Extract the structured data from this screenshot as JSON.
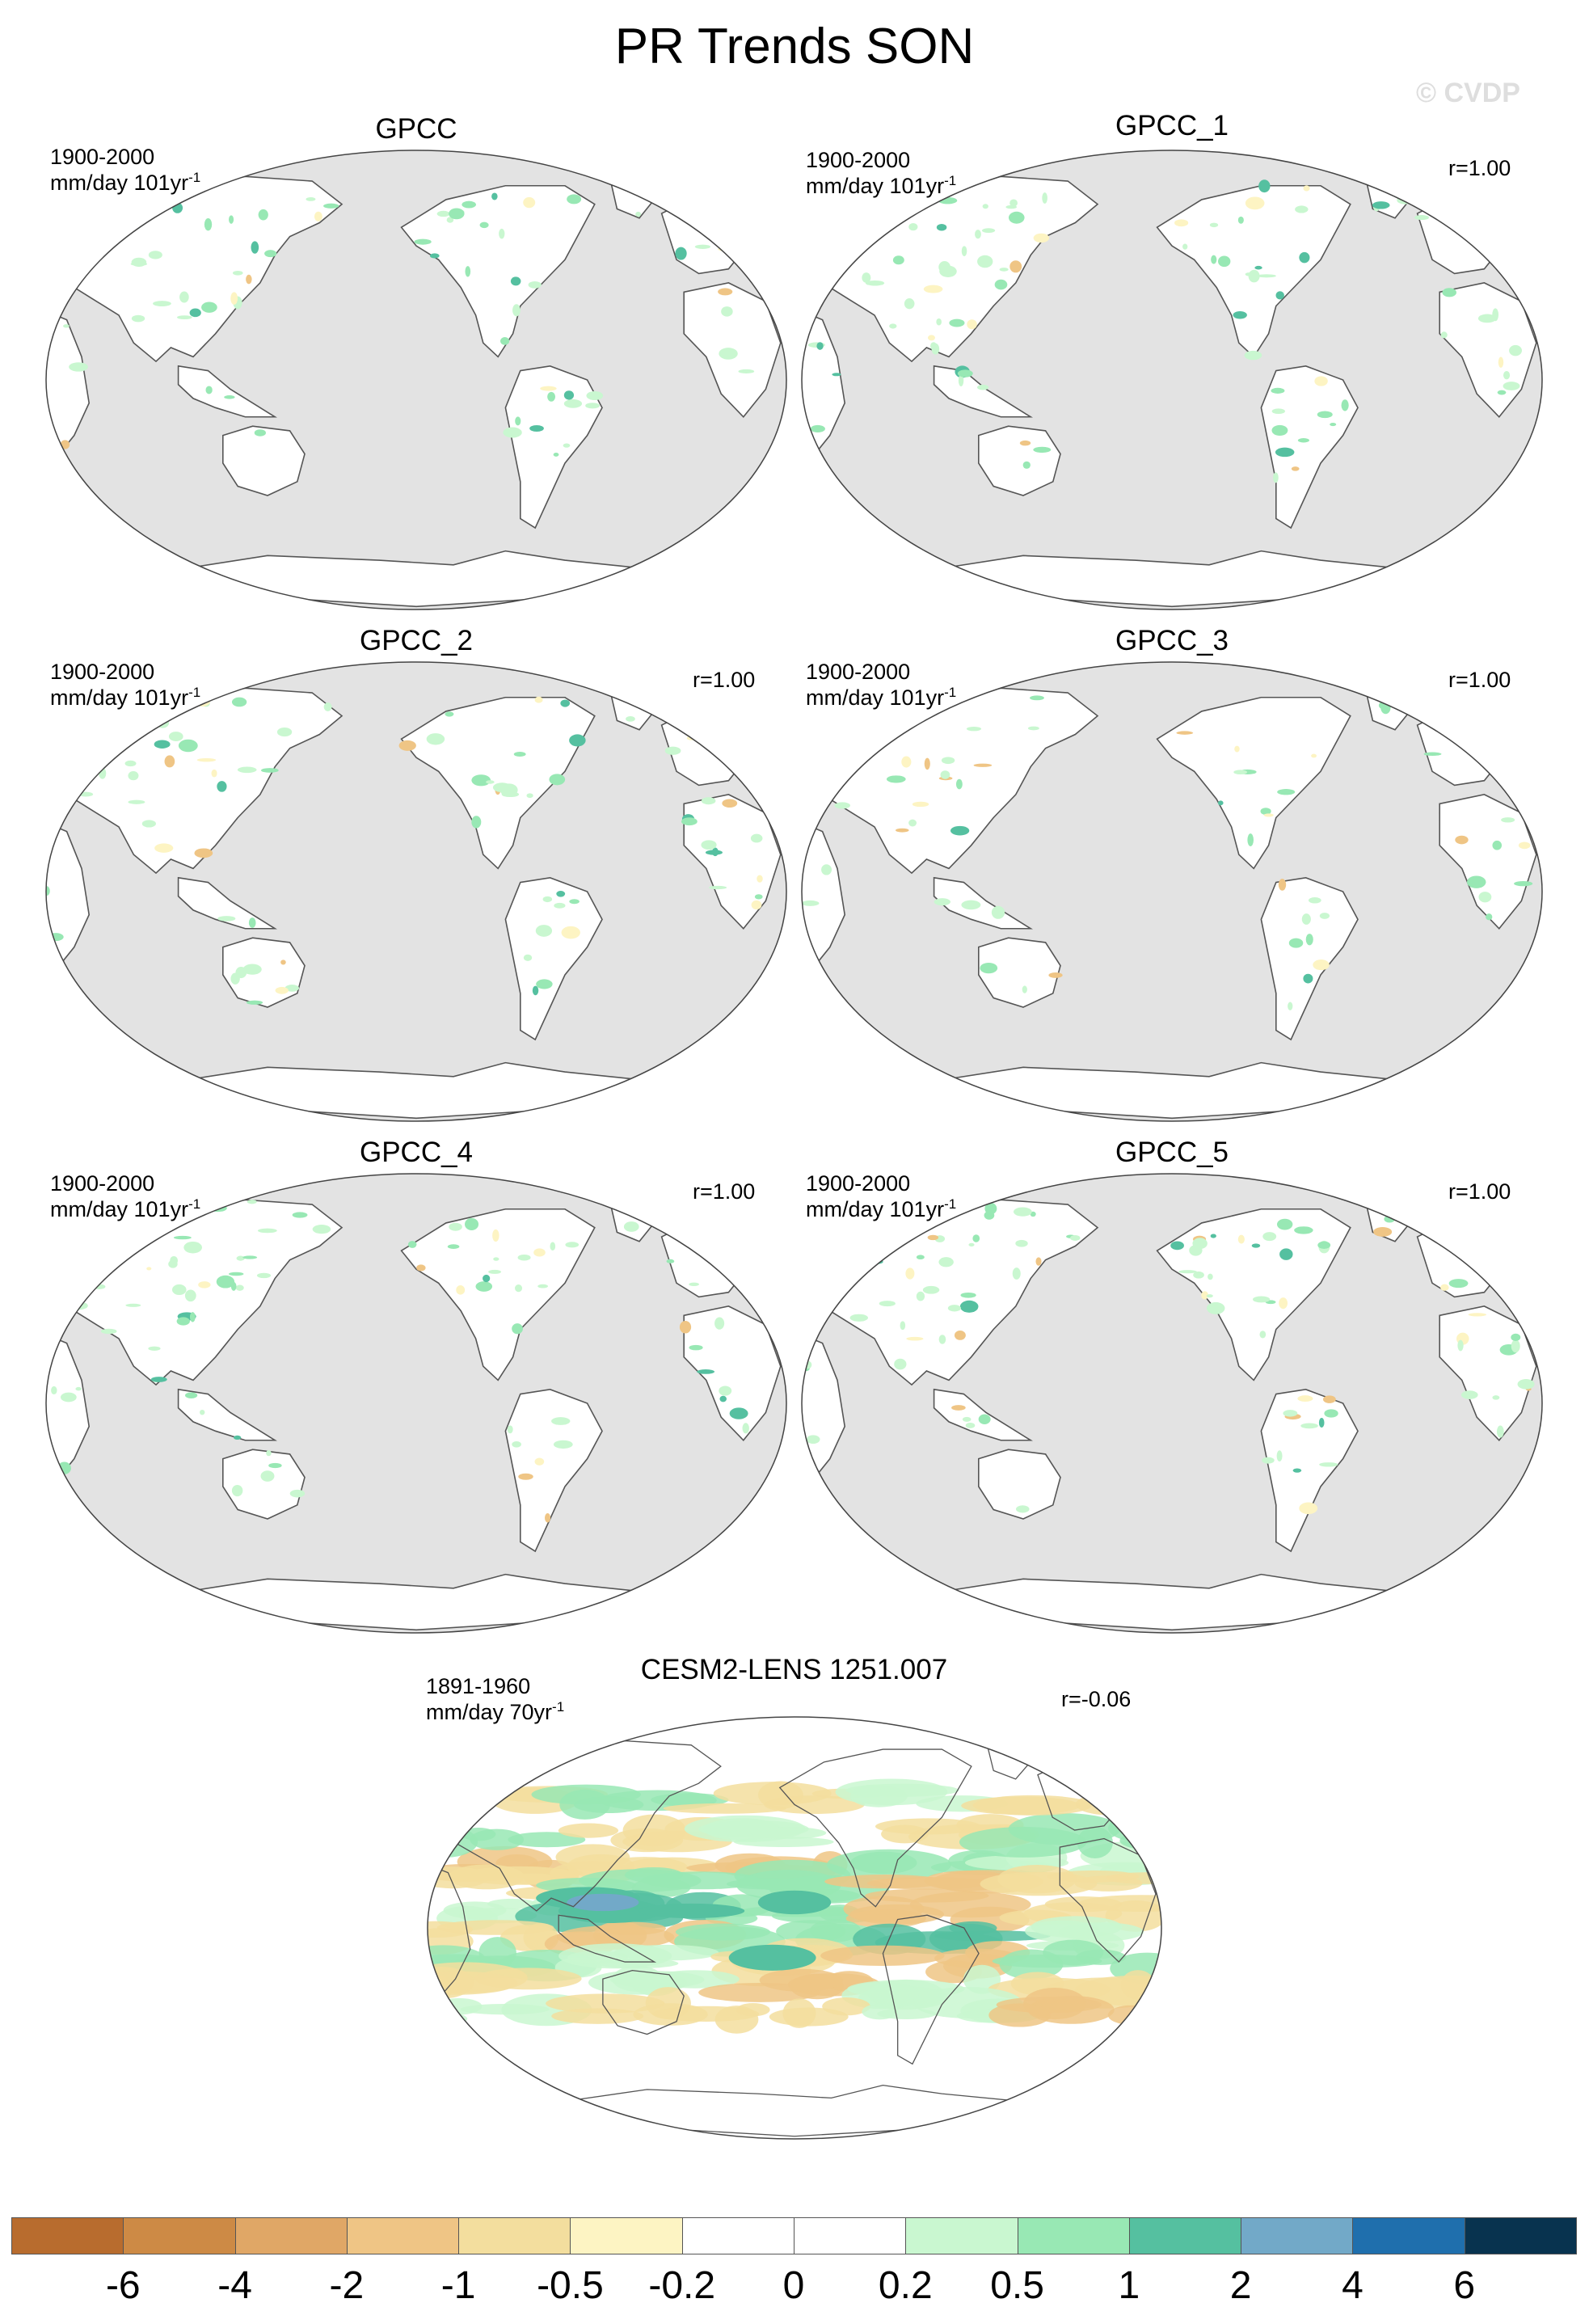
{
  "figure": {
    "title": "PR Trends SON",
    "watermark": "© CVDP"
  },
  "panels": [
    {
      "title": "GPCC",
      "period": "1900-2000",
      "units": "mm/day 101yr",
      "units_exp": "-1",
      "corr": ""
    },
    {
      "title": "GPCC_1",
      "period": "1900-2000",
      "units": "mm/day 101yr",
      "units_exp": "-1",
      "corr": "r=1.00"
    },
    {
      "title": "GPCC_2",
      "period": "1900-2000",
      "units": "mm/day 101yr",
      "units_exp": "-1",
      "corr": "r=1.00"
    },
    {
      "title": "GPCC_3",
      "period": "1900-2000",
      "units": "mm/day 101yr",
      "units_exp": "-1",
      "corr": "r=1.00"
    },
    {
      "title": "GPCC_4",
      "period": "1900-2000",
      "units": "mm/day 101yr",
      "units_exp": "-1",
      "corr": "r=1.00"
    },
    {
      "title": "GPCC_5",
      "period": "1900-2000",
      "units": "mm/day 101yr",
      "units_exp": "-1",
      "corr": "r=1.00"
    },
    {
      "title": "CESM2-LENS 1251.007",
      "period": "1891-1960",
      "units": "mm/day 70yr",
      "units_exp": "-1",
      "corr": "r=-0.06"
    }
  ],
  "colorbar": {
    "colors": [
      "#b86c2e",
      "#cd8a45",
      "#e0a766",
      "#efc585",
      "#f3de9e",
      "#fdf4c3",
      "#ffffff",
      "#ffffff",
      "#c9f7d0",
      "#98e8b4",
      "#55c0a0",
      "#72a9c8",
      "#1f6fad",
      "#08334f"
    ],
    "labels": [
      "-6",
      "-4",
      "-2",
      "-1",
      "-0.5",
      "-0.2",
      "0",
      "0.2",
      "0.5",
      "1",
      "2",
      "4",
      "6"
    ]
  },
  "map_style": {
    "ocean_color": "#e3e3e3",
    "land_color": "#ffffff",
    "coast_color": "#555555"
  }
}
